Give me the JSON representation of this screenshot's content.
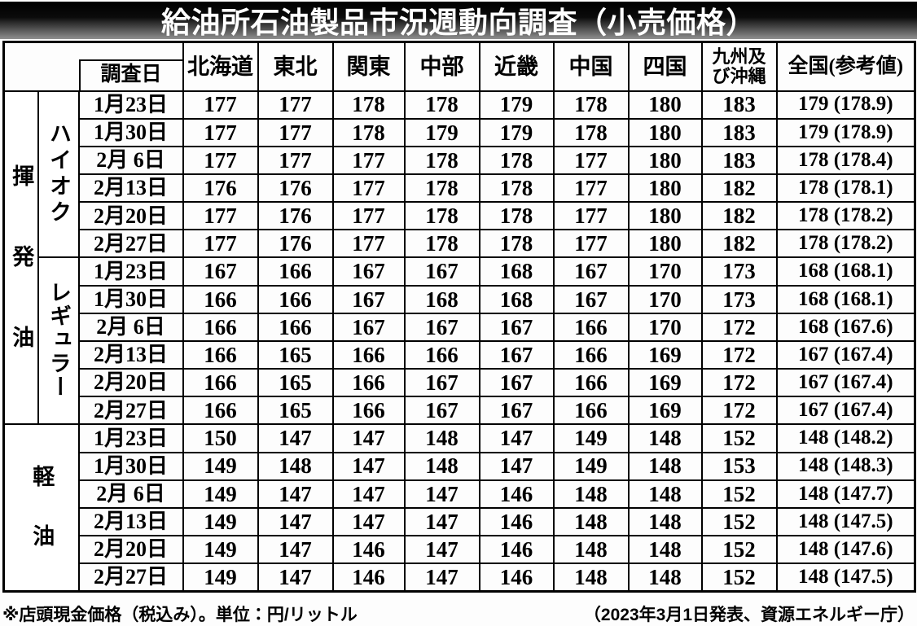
{
  "chart_data": {
    "type": "table",
    "title": "給油所石油製品市況週動向調査（小売価格）",
    "date_header": "調査日",
    "headers": [
      "北海道",
      "東北",
      "関東",
      "中部",
      "近畿",
      "中国",
      "四国",
      "九州及\nび沖縄",
      "全国(参考値)"
    ],
    "unit": "円/リットル",
    "sections": [
      {
        "group": "揮発油",
        "gap": "large",
        "subgroups": [
          {
            "name": "ハイオク",
            "gap": "small",
            "rows": [
              {
                "date": "1月23日",
                "values": [
                  177,
                  177,
                  178,
                  178,
                  179,
                  178,
                  180,
                  183
                ],
                "national": "179 (178.9)"
              },
              {
                "date": "1月30日",
                "values": [
                  177,
                  177,
                  178,
                  179,
                  179,
                  178,
                  180,
                  183
                ],
                "national": "179 (178.9)"
              },
              {
                "date": "2月 6日",
                "values": [
                  177,
                  177,
                  177,
                  178,
                  178,
                  177,
                  180,
                  183
                ],
                "national": "178 (178.4)"
              },
              {
                "date": "2月13日",
                "values": [
                  176,
                  176,
                  177,
                  178,
                  178,
                  177,
                  180,
                  182
                ],
                "national": "178 (178.1)"
              },
              {
                "date": "2月20日",
                "values": [
                  177,
                  176,
                  177,
                  178,
                  178,
                  177,
                  180,
                  182
                ],
                "national": "178 (178.2)"
              },
              {
                "date": "2月27日",
                "values": [
                  177,
                  176,
                  177,
                  178,
                  178,
                  177,
                  180,
                  182
                ],
                "national": "178 (178.2)"
              }
            ]
          },
          {
            "name": "レギュラー",
            "gap": "xs",
            "rows": [
              {
                "date": "1月23日",
                "values": [
                  167,
                  166,
                  167,
                  167,
                  168,
                  167,
                  170,
                  173
                ],
                "national": "168 (168.1)"
              },
              {
                "date": "1月30日",
                "values": [
                  166,
                  166,
                  167,
                  168,
                  168,
                  167,
                  170,
                  173
                ],
                "national": "168 (168.1)"
              },
              {
                "date": "2月 6日",
                "values": [
                  166,
                  166,
                  167,
                  167,
                  167,
                  166,
                  170,
                  172
                ],
                "national": "168 (167.6)"
              },
              {
                "date": "2月13日",
                "values": [
                  166,
                  165,
                  166,
                  166,
                  167,
                  166,
                  169,
                  172
                ],
                "national": "167 (167.4)"
              },
              {
                "date": "2月20日",
                "values": [
                  166,
                  165,
                  166,
                  167,
                  167,
                  166,
                  169,
                  172
                ],
                "national": "167 (167.4)"
              },
              {
                "date": "2月27日",
                "values": [
                  166,
                  165,
                  166,
                  167,
                  167,
                  166,
                  169,
                  172
                ],
                "national": "167 (167.4)"
              }
            ]
          }
        ]
      },
      {
        "group": "軽油",
        "gap": "mid",
        "subgroups": [
          {
            "name": null,
            "gap": "mid",
            "rows": [
              {
                "date": "1月23日",
                "values": [
                  150,
                  147,
                  147,
                  148,
                  147,
                  149,
                  148,
                  152
                ],
                "national": "148 (148.2)"
              },
              {
                "date": "1月30日",
                "values": [
                  149,
                  148,
                  147,
                  148,
                  147,
                  149,
                  148,
                  153
                ],
                "national": "148 (148.3)"
              },
              {
                "date": "2月 6日",
                "values": [
                  149,
                  147,
                  147,
                  147,
                  146,
                  148,
                  148,
                  152
                ],
                "national": "148 (147.7)"
              },
              {
                "date": "2月13日",
                "values": [
                  149,
                  147,
                  147,
                  147,
                  146,
                  148,
                  148,
                  152
                ],
                "national": "148 (147.5)"
              },
              {
                "date": "2月20日",
                "values": [
                  149,
                  147,
                  146,
                  147,
                  146,
                  148,
                  148,
                  152
                ],
                "national": "148 (147.6)"
              },
              {
                "date": "2月27日",
                "values": [
                  149,
                  147,
                  146,
                  147,
                  146,
                  148,
                  148,
                  152
                ],
                "national": "148 (147.5)"
              }
            ]
          }
        ]
      }
    ],
    "footnote_left": "※店頭現金価格（税込み）。単位：円/リットル",
    "footnote_right": "（2023年3月1日発表、資源エネルギー庁）"
  },
  "colors": {
    "title_bg_top": "#000000",
    "title_bg_bottom": "#8f8f8f",
    "title_text": "#ffffff",
    "border": "#000000",
    "text": "#000000",
    "background": "#ffffff"
  }
}
